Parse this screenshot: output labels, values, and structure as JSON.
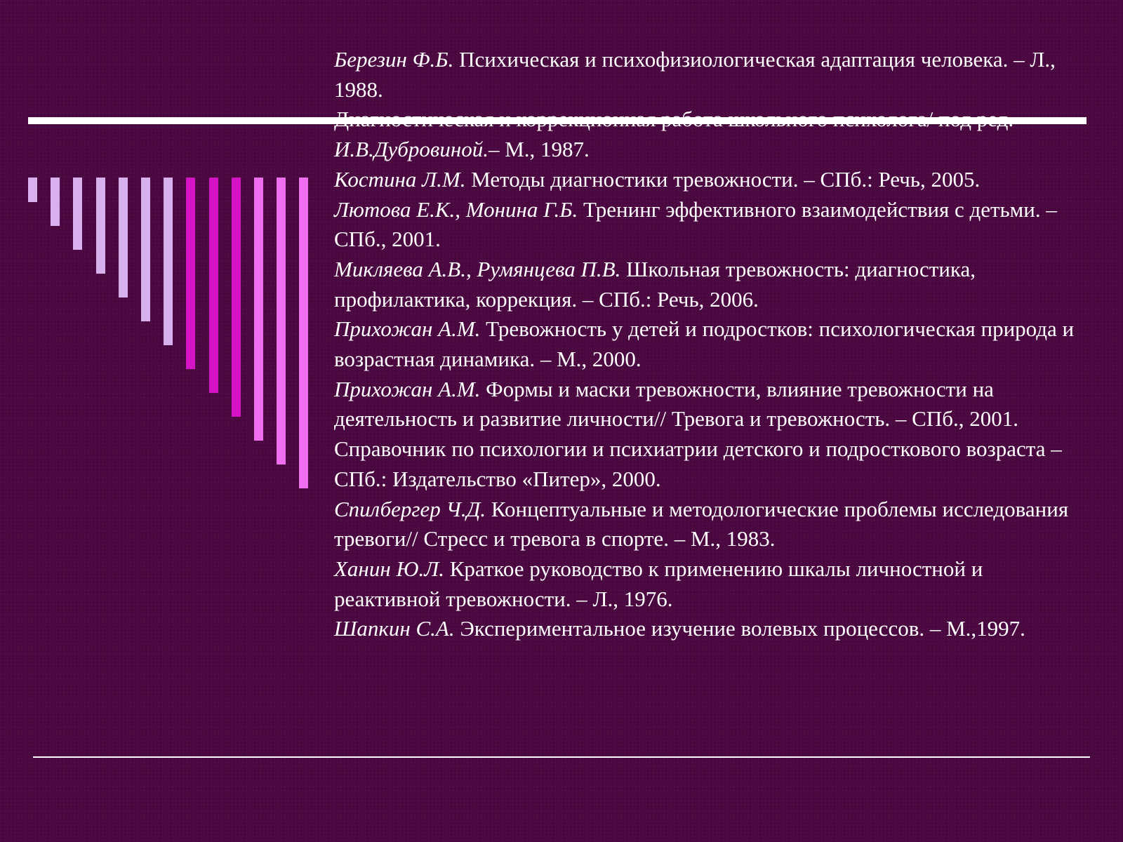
{
  "decoration": {
    "bar_colors": [
      "#d8b0ee",
      "#d8b0ee",
      "#d8b0ee",
      "#d8b0ee",
      "#d8b0ee",
      "#d8b0ee",
      "#d8b0ee",
      "#d313c4",
      "#d313c4",
      "#d313c4",
      "#f06ef0",
      "#f06ef0",
      "#f06ef0"
    ],
    "rule_color": "#ffffff",
    "background_color": "#4a0740",
    "text_color": "#ffffff"
  },
  "references": [
    {
      "author": "Березин Ф.Б.",
      "text": " Психическая и психофизиологическая адаптация человека. – Л., 1988."
    },
    {
      "author": "",
      "text": "Диагностическая и коррекционная работа школьного психолога/ под ред. ",
      "author2": "И.В.Дубровиной.",
      "text2": "– М., 1987."
    },
    {
      "author": "Костина Л.М.",
      "text": " Методы диагностики тревожности. – СПб.: Речь, 2005."
    },
    {
      "author": "Лютова Е.К., Монина Г.Б.",
      "text": " Тренинг эффективного взаимодействия с детьми. – СПб., 2001."
    },
    {
      "author": "Микляева А.В., Румянцева П.В.",
      "text": " Школьная тревожность: диагностика, профилактика, коррекция. – СПб.: Речь, 2006."
    },
    {
      "author": "Прихожан А.М.",
      "text": "  Тревожность у детей и подростков: психологическая природа и возрастная динамика. – М., 2000."
    },
    {
      "author": "Прихожан А.М.",
      "text": "  Формы и маски тревожности, влияние тревожности на деятельность и развитие личности// Тревога и тревожность. – СПб., 2001."
    },
    {
      "author": "",
      "text": "Справочник по психологии и психиатрии детского и подросткового возраста – СПб.: Издательство «Питер», 2000."
    },
    {
      "author": "Спилбергер Ч.Д.",
      "text": " Концептуальные и методологические проблемы исследования тревоги// Стресс и тревога в спорте. – М., 1983."
    },
    {
      "author": "Ханин Ю.Л.",
      "text": " Краткое руководство к применению шкалы личностной и реактивной тревожности. – Л., 1976."
    },
    {
      "author": "Шапкин С.А.",
      "text": " Экспериментальное изучение волевых процессов. – М.,1997."
    }
  ]
}
